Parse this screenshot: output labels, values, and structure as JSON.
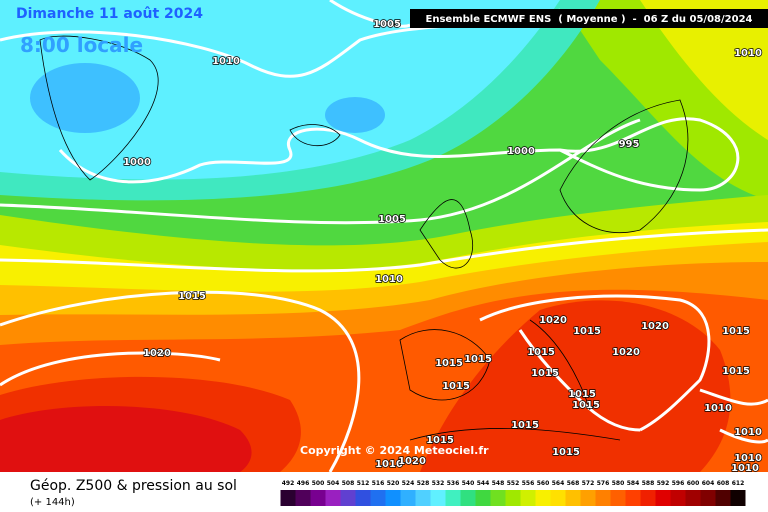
{
  "header": {
    "date": "Dimanche 11 août 2024",
    "time": "8:00 locale",
    "model": "Ensemble ECMWF ENS  ( Moyenne )  -  06 Z du 05/08/2024"
  },
  "isobar_labels": [
    "1005",
    "1010",
    "1010",
    "1000",
    "1000",
    "995",
    "1005",
    "1010",
    "1015",
    "1020",
    "1020",
    "1015",
    "1020",
    "1015",
    "1015",
    "1015",
    "1020",
    "1015",
    "1015",
    "1015",
    "1015",
    "1015",
    "1015",
    "1010",
    "1015",
    "1010",
    "1015",
    "1015",
    "1010",
    "1010",
    "1020",
    "1010"
  ],
  "copyright": "Copyright © 2024 Meteociel.fr",
  "legend": {
    "title": "Géop. Z500 & pression au sol",
    "subtitle": "(+ 144h)",
    "labels": [
      492,
      496,
      500,
      504,
      508,
      512,
      516,
      520,
      524,
      528,
      532,
      536,
      540,
      544,
      548,
      552,
      556,
      560,
      564,
      568,
      572,
      576,
      580,
      584,
      588,
      592,
      596,
      600,
      604,
      608,
      612
    ],
    "colors": [
      "#2a0030",
      "#50005a",
      "#780090",
      "#9a20c0",
      "#6040d0",
      "#3050e0",
      "#2070f0",
      "#1090ff",
      "#30b0ff",
      "#50d0ff",
      "#60f0ff",
      "#40f0c0",
      "#30e080",
      "#40d840",
      "#70e020",
      "#a0e800",
      "#d0f000",
      "#f8f000",
      "#ffe000",
      "#ffc000",
      "#ffa000",
      "#ff8000",
      "#ff6000",
      "#ff4000",
      "#f02000",
      "#e00000",
      "#c00000",
      "#a00000",
      "#800000",
      "#500000",
      "#100000"
    ]
  }
}
